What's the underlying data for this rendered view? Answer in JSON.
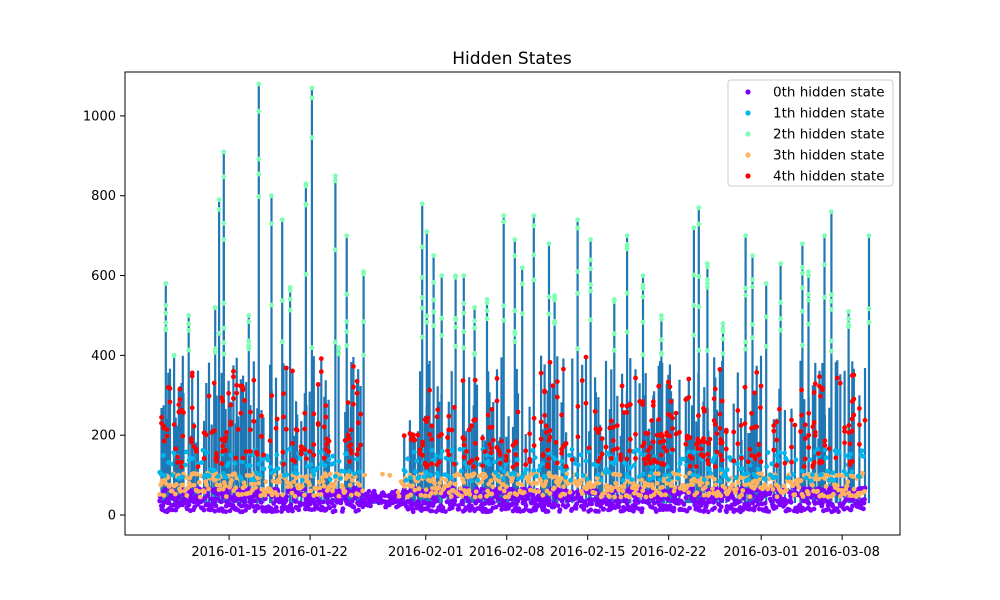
{
  "chart_data": {
    "type": "scatter",
    "title": "Hidden States",
    "xlabel": "",
    "ylabel": "",
    "x_axis_type": "date",
    "xlim": [
      "2016-01-06",
      "2016-03-13"
    ],
    "ylim": [
      -50,
      1110
    ],
    "x_ticks": [
      "2016-01-15",
      "2016-01-22",
      "2016-02-01",
      "2016-02-08",
      "2016-02-15",
      "2016-02-22",
      "2016-03-01",
      "2016-03-08"
    ],
    "y_ticks": [
      0,
      200,
      400,
      600,
      800,
      1000
    ],
    "data_start": "2016-01-09",
    "data_end": "2016-03-10",
    "gap": [
      "2016-01-26",
      "2016-01-30"
    ],
    "legend_position": "upper right",
    "grid": false,
    "line": {
      "color": "#1f77b4",
      "description": "observed series drawn as line"
    },
    "spikes": [
      {
        "x": "2016-01-09",
        "y": 580
      },
      {
        "x": "2016-01-10",
        "y": 400
      },
      {
        "x": "2016-01-11",
        "y": 500
      },
      {
        "x": "2016-01-13",
        "y": 520
      },
      {
        "x": "2016-01-14",
        "y": 690
      },
      {
        "x": "2016-01-14",
        "y": 910
      },
      {
        "x": "2016-01-14",
        "y": 790
      },
      {
        "x": "2016-01-16",
        "y": 500
      },
      {
        "x": "2016-01-17",
        "y": 1080
      },
      {
        "x": "2016-01-18",
        "y": 800
      },
      {
        "x": "2016-01-19",
        "y": 740
      },
      {
        "x": "2016-01-20",
        "y": 570
      },
      {
        "x": "2016-01-21",
        "y": 830
      },
      {
        "x": "2016-01-22",
        "y": 1070
      },
      {
        "x": "2016-01-24",
        "y": 420
      },
      {
        "x": "2016-01-24",
        "y": 850
      },
      {
        "x": "2016-01-25",
        "y": 700
      },
      {
        "x": "2016-01-26",
        "y": 610
      },
      {
        "x": "2016-01-31",
        "y": 780
      },
      {
        "x": "2016-02-01",
        "y": 650
      },
      {
        "x": "2016-02-01",
        "y": 710
      },
      {
        "x": "2016-02-02",
        "y": 600
      },
      {
        "x": "2016-02-03",
        "y": 600
      },
      {
        "x": "2016-02-04",
        "y": 600
      },
      {
        "x": "2016-02-05",
        "y": 520
      },
      {
        "x": "2016-02-06",
        "y": 540
      },
      {
        "x": "2016-02-07",
        "y": 750
      },
      {
        "x": "2016-02-08",
        "y": 690
      },
      {
        "x": "2016-02-09",
        "y": 620
      },
      {
        "x": "2016-02-10",
        "y": 750
      },
      {
        "x": "2016-02-11",
        "y": 680
      },
      {
        "x": "2016-02-12",
        "y": 550
      },
      {
        "x": "2016-02-14",
        "y": 740
      },
      {
        "x": "2016-02-15",
        "y": 690
      },
      {
        "x": "2016-02-17",
        "y": 540
      },
      {
        "x": "2016-02-18",
        "y": 700
      },
      {
        "x": "2016-02-19",
        "y": 600
      },
      {
        "x": "2016-02-21",
        "y": 500
      },
      {
        "x": "2016-02-24",
        "y": 770
      },
      {
        "x": "2016-02-24",
        "y": 720
      },
      {
        "x": "2016-02-25",
        "y": 630
      },
      {
        "x": "2016-02-26",
        "y": 480
      },
      {
        "x": "2016-02-28",
        "y": 700
      },
      {
        "x": "2016-02-29",
        "y": 650
      },
      {
        "x": "2016-03-01",
        "y": 580
      },
      {
        "x": "2016-03-02",
        "y": 630
      },
      {
        "x": "2016-03-04",
        "y": 680
      },
      {
        "x": "2016-03-05",
        "y": 610
      },
      {
        "x": "2016-03-06",
        "y": 700
      },
      {
        "x": "2016-03-07",
        "y": 760
      },
      {
        "x": "2016-03-08",
        "y": 510
      },
      {
        "x": "2016-03-10",
        "y": 700
      }
    ],
    "series": [
      {
        "name": "0th hidden state",
        "color": "#8000ff",
        "y_range": [
          5,
          65
        ],
        "distribution": "continuous, all days"
      },
      {
        "name": "1th hidden state",
        "color": "#00b5eb",
        "y_range": [
          80,
          170
        ],
        "distribution": "continuous, all days"
      },
      {
        "name": "2th hidden state",
        "color": "#80ffb4",
        "y_range": [
          400,
          1080
        ],
        "distribution": "spike peaks"
      },
      {
        "name": "3th hidden state",
        "color": "#ffb360",
        "y_range": [
          40,
          110
        ],
        "distribution": "continuous, all days"
      },
      {
        "name": "4th hidden state",
        "color": "#ff0000",
        "y_range": [
          100,
          460
        ],
        "distribution": "mid-level spikes"
      }
    ]
  }
}
